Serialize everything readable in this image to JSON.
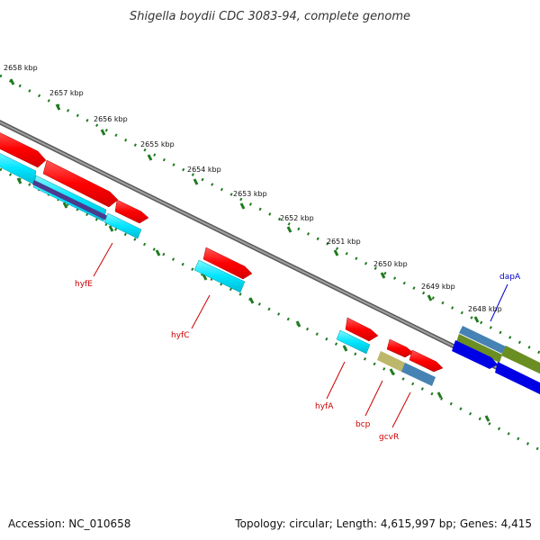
{
  "title": "Shigella boydii CDC 3083-94, complete genome",
  "footer": {
    "accession": "Accession: NC_010658",
    "summary": "Topology: circular; Length: 4,615,997 bp; Genes: 4,415"
  },
  "ticks": [
    "2658 kbp",
    "2657 kbp",
    "2656 kbp",
    "2655 kbp",
    "2654 kbp",
    "2653 kbp",
    "2652 kbp",
    "2651 kbp",
    "2650 kbp",
    "2649 kbp",
    "2648 kbp"
  ],
  "genes": [
    {
      "label": "hyfE",
      "color": "#cc0000"
    },
    {
      "label": "hyfC",
      "color": "#cc0000"
    },
    {
      "label": "hyfA",
      "color": "#cc0000"
    },
    {
      "label": "bcp",
      "color": "#cc0000"
    },
    {
      "label": "gcvR",
      "color": "#cc0000"
    },
    {
      "label": "dapA",
      "color": "#0000cc"
    }
  ],
  "colors": {
    "backbone": "#808080",
    "tick": "#1f7a1f",
    "forward_cds": "#ff0000",
    "reverse_cds": "#00e5ff",
    "blue_feature": "#0000e6",
    "olive_feature": "#6b8e23",
    "steel_feature": "#4682b4",
    "khaki_feature": "#bdb76b",
    "purple_feature": "#4b3b8f"
  }
}
